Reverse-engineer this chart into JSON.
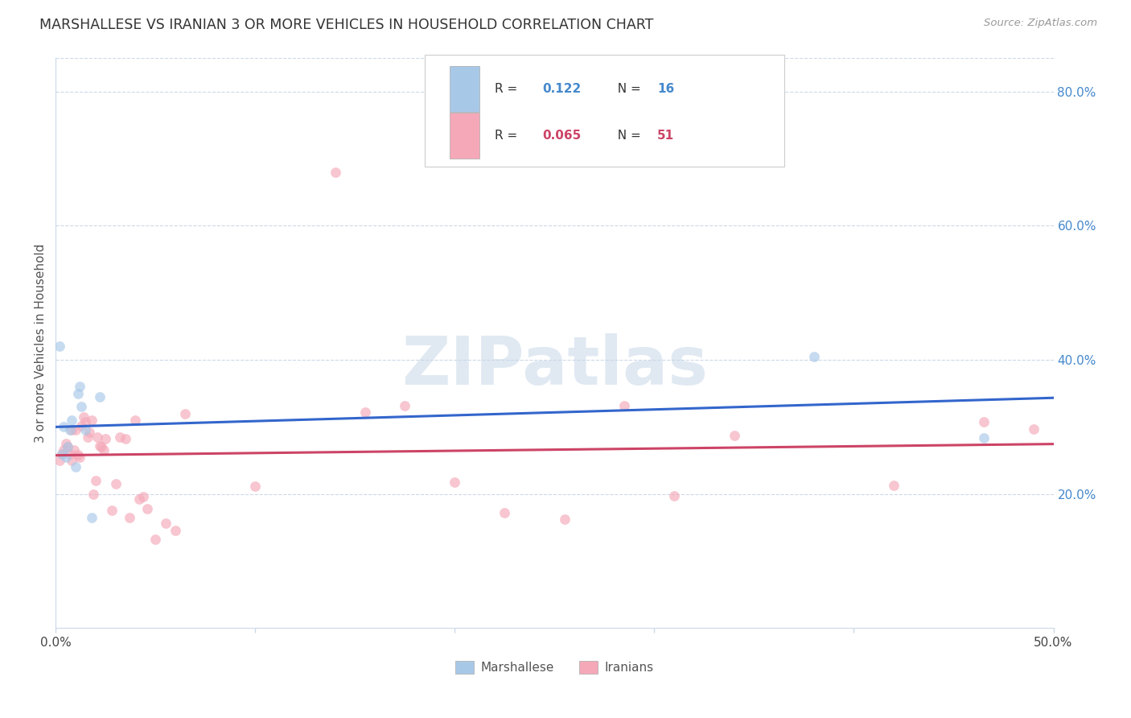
{
  "title": "MARSHALLESE VS IRANIAN 3 OR MORE VEHICLES IN HOUSEHOLD CORRELATION CHART",
  "source": "Source: ZipAtlas.com",
  "ylabel": "3 or more Vehicles in Household",
  "xmin": 0.0,
  "xmax": 0.5,
  "ymin": 0.0,
  "ymax": 0.85,
  "yticks_right": [
    0.2,
    0.4,
    0.6,
    0.8
  ],
  "ytick_labels_right": [
    "20.0%",
    "40.0%",
    "60.0%",
    "80.0%"
  ],
  "marshallese_x": [
    0.002,
    0.003,
    0.004,
    0.005,
    0.006,
    0.007,
    0.008,
    0.01,
    0.011,
    0.012,
    0.013,
    0.015,
    0.018,
    0.022,
    0.38,
    0.465
  ],
  "marshallese_y": [
    0.42,
    0.26,
    0.3,
    0.255,
    0.27,
    0.295,
    0.31,
    0.24,
    0.35,
    0.36,
    0.33,
    0.295,
    0.165,
    0.345,
    0.405,
    0.283
  ],
  "iranians_x": [
    0.002,
    0.003,
    0.004,
    0.005,
    0.006,
    0.007,
    0.008,
    0.008,
    0.009,
    0.01,
    0.011,
    0.012,
    0.013,
    0.014,
    0.015,
    0.016,
    0.017,
    0.018,
    0.019,
    0.02,
    0.021,
    0.022,
    0.023,
    0.024,
    0.025,
    0.028,
    0.03,
    0.032,
    0.035,
    0.037,
    0.04,
    0.042,
    0.044,
    0.046,
    0.05,
    0.055,
    0.06,
    0.065,
    0.1,
    0.14,
    0.155,
    0.175,
    0.2,
    0.225,
    0.255,
    0.285,
    0.31,
    0.34,
    0.42,
    0.465,
    0.49
  ],
  "iranians_y": [
    0.25,
    0.26,
    0.265,
    0.275,
    0.27,
    0.26,
    0.25,
    0.295,
    0.265,
    0.295,
    0.258,
    0.255,
    0.302,
    0.315,
    0.308,
    0.285,
    0.292,
    0.31,
    0.2,
    0.22,
    0.285,
    0.272,
    0.27,
    0.265,
    0.282,
    0.175,
    0.215,
    0.285,
    0.282,
    0.165,
    0.31,
    0.192,
    0.196,
    0.178,
    0.132,
    0.156,
    0.145,
    0.32,
    0.212,
    0.68,
    0.322,
    0.332,
    0.218,
    0.172,
    0.162,
    0.332,
    0.197,
    0.287,
    0.213,
    0.307,
    0.297
  ],
  "marshallese_color": "#a8c8e8",
  "iranians_color": "#f4a8b8",
  "marshallese_line_color": "#3366cc",
  "iranians_line_color": "#cc4466",
  "background_color": "#ffffff",
  "grid_color": "#ccd8e8",
  "marker_size": 85,
  "marker_alpha": 0.65,
  "watermark_text": "ZIPatlas",
  "watermark_color": "#c8d8e8",
  "watermark_fontsize": 60
}
